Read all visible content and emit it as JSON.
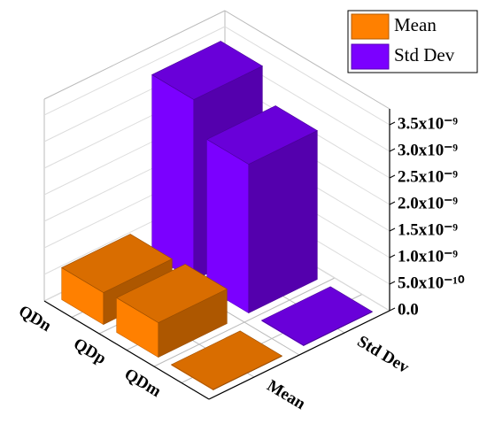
{
  "chart_data": {
    "type": "bar3d",
    "categories": [
      "QDn",
      "QDp",
      "QDm"
    ],
    "series": [
      {
        "name": "Mean",
        "color": "#ff8000",
        "values": [
          6e-10,
          6.5e-10,
          1e-11
        ]
      },
      {
        "name": "Std Dev",
        "color": "#7b00ff",
        "values": [
          3.4e-09,
          2.8e-09,
          1e-11
        ]
      }
    ],
    "zlim": [
      0,
      3.8e-09
    ],
    "zticks": [
      {
        "value": 0,
        "label": "0.0"
      },
      {
        "value": 5e-10,
        "label": "5.0x10⁻¹⁰"
      },
      {
        "value": 1e-09,
        "label": "1.0x10⁻⁹"
      },
      {
        "value": 1.5e-09,
        "label": "1.5x10⁻⁹"
      },
      {
        "value": 2e-09,
        "label": "2.0x10⁻⁹"
      },
      {
        "value": 2.5e-09,
        "label": "2.5x10⁻⁹"
      },
      {
        "value": 3e-09,
        "label": "3.0x10⁻⁹"
      },
      {
        "value": 3.5e-09,
        "label": "3.5x10⁻⁹"
      }
    ],
    "grid": true,
    "legend": "top-right"
  }
}
